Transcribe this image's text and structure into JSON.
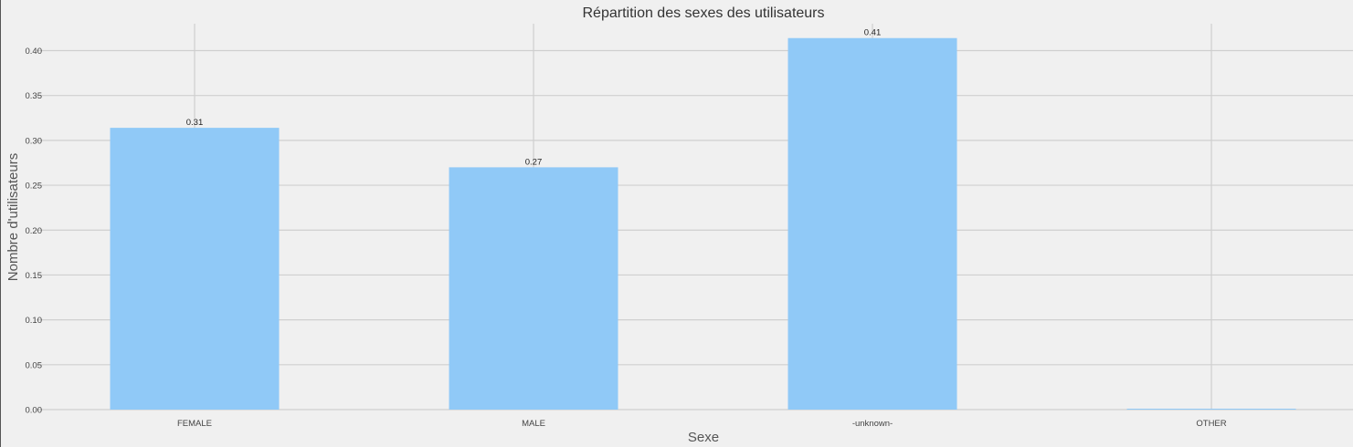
{
  "chart_data": {
    "type": "bar",
    "title": "Répartition des sexes des utilisateurs",
    "xlabel": "Sexe",
    "ylabel": "Nombre d'utilisateurs",
    "categories": [
      "FEMALE",
      "MALE",
      "-unknown-",
      "OTHER"
    ],
    "values": [
      0.314,
      0.27,
      0.414,
      0.001
    ],
    "data_labels": [
      "0.31",
      "0.27",
      "0.41",
      ""
    ],
    "yticks": [
      "0.00",
      "0.05",
      "0.10",
      "0.15",
      "0.20",
      "0.25",
      "0.30",
      "0.35",
      "0.40"
    ],
    "ylim": [
      0,
      0.43
    ],
    "grid": true,
    "colors": {
      "bar": "#90c9f7",
      "background": "#f0f0f0",
      "grid": "#cfcfcf",
      "text": "#333333"
    }
  }
}
